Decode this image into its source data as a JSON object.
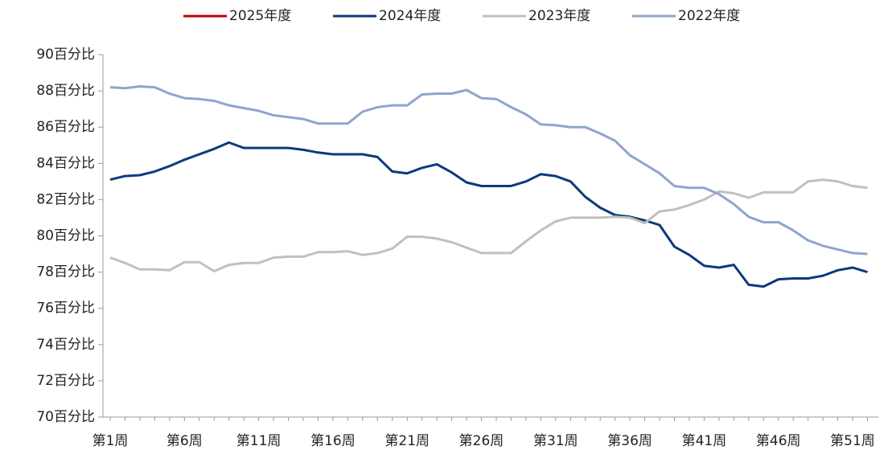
{
  "chart_data": {
    "type": "line",
    "categories": [
      "第1周",
      null,
      null,
      null,
      null,
      "第6周",
      null,
      null,
      null,
      null,
      "第11周",
      null,
      null,
      null,
      null,
      "第16周",
      null,
      null,
      null,
      null,
      "第21周",
      null,
      null,
      null,
      null,
      "第26周",
      null,
      null,
      null,
      null,
      "第31周",
      null,
      null,
      null,
      null,
      "第36周",
      null,
      null,
      null,
      null,
      "第41周",
      null,
      null,
      null,
      null,
      "第46周",
      null,
      null,
      null,
      null,
      "第51周",
      null
    ],
    "series": [
      {
        "name": "2025年度",
        "color": "#c00000",
        "values": [
          null,
          null,
          null,
          null,
          null,
          null,
          null,
          null,
          null,
          null,
          null,
          null,
          null,
          null,
          null,
          null,
          null,
          null,
          null,
          null,
          null,
          null,
          null,
          null,
          null,
          null,
          null,
          null,
          null,
          null,
          null,
          null,
          null,
          null,
          null,
          null,
          null,
          null,
          null,
          null,
          null,
          null,
          null,
          null,
          null,
          null,
          null,
          null,
          null,
          null,
          null,
          null
        ]
      },
      {
        "name": "2024年度",
        "color": "#0b3a7c",
        "values": [
          83.1,
          83.3,
          83.35,
          83.55,
          83.85,
          84.2,
          84.5,
          84.8,
          85.15,
          84.85,
          84.85,
          84.85,
          84.85,
          84.75,
          84.6,
          84.5,
          84.5,
          84.5,
          84.35,
          83.55,
          83.45,
          83.75,
          83.95,
          83.5,
          82.95,
          82.75,
          82.75,
          82.75,
          83.0,
          83.4,
          83.3,
          83.0,
          82.15,
          81.55,
          81.15,
          81.05,
          80.85,
          80.6,
          79.4,
          78.95,
          78.35,
          78.25,
          78.4,
          77.3,
          77.2,
          77.6,
          77.65,
          77.65,
          77.8,
          78.1,
          78.25,
          78.0
        ]
      },
      {
        "name": "2023年度",
        "color": "#c0c0c0",
        "values": [
          78.8,
          78.5,
          78.15,
          78.15,
          78.1,
          78.55,
          78.55,
          78.05,
          78.4,
          78.5,
          78.5,
          78.8,
          78.85,
          78.85,
          79.1,
          79.1,
          79.15,
          78.95,
          79.05,
          79.3,
          79.95,
          79.95,
          79.85,
          79.65,
          79.35,
          79.05,
          79.05,
          79.05,
          79.7,
          80.3,
          80.8,
          81.0,
          81.0,
          81.0,
          81.05,
          81.0,
          80.7,
          81.35,
          81.45,
          81.7,
          82.0,
          82.45,
          82.35,
          82.1,
          82.4,
          82.4,
          82.4,
          83.0,
          83.1,
          83.0,
          82.75,
          82.65
        ]
      },
      {
        "name": "2022年度",
        "color": "#8fa5cc",
        "values": [
          88.2,
          88.15,
          88.25,
          88.2,
          87.85,
          87.6,
          87.55,
          87.45,
          87.2,
          87.05,
          86.9,
          86.65,
          86.55,
          86.45,
          86.2,
          86.2,
          86.2,
          86.85,
          87.1,
          87.2,
          87.2,
          87.8,
          87.85,
          87.85,
          88.05,
          87.6,
          87.55,
          87.1,
          86.7,
          86.15,
          86.1,
          86.0,
          86.0,
          85.65,
          85.25,
          84.45,
          83.95,
          83.45,
          82.75,
          82.65,
          82.65,
          82.3,
          81.75,
          81.05,
          80.75,
          80.75,
          80.3,
          79.75,
          79.45,
          79.25,
          79.05,
          79.0
        ]
      }
    ],
    "ylim": [
      70,
      90
    ],
    "yticks": [
      {
        "value": 70,
        "label": "70百分比"
      },
      {
        "value": 72,
        "label": "72百分比"
      },
      {
        "value": 74,
        "label": "74百分比"
      },
      {
        "value": 76,
        "label": "76百分比"
      },
      {
        "value": 78,
        "label": "78百分比"
      },
      {
        "value": 80,
        "label": "80百分比"
      },
      {
        "value": 82,
        "label": "82百分比"
      },
      {
        "value": 84,
        "label": "84百分比"
      },
      {
        "value": 86,
        "label": "86百分比"
      },
      {
        "value": 88,
        "label": "88百分比"
      },
      {
        "value": 90,
        "label": "90百分比"
      }
    ],
    "legend": "top"
  }
}
